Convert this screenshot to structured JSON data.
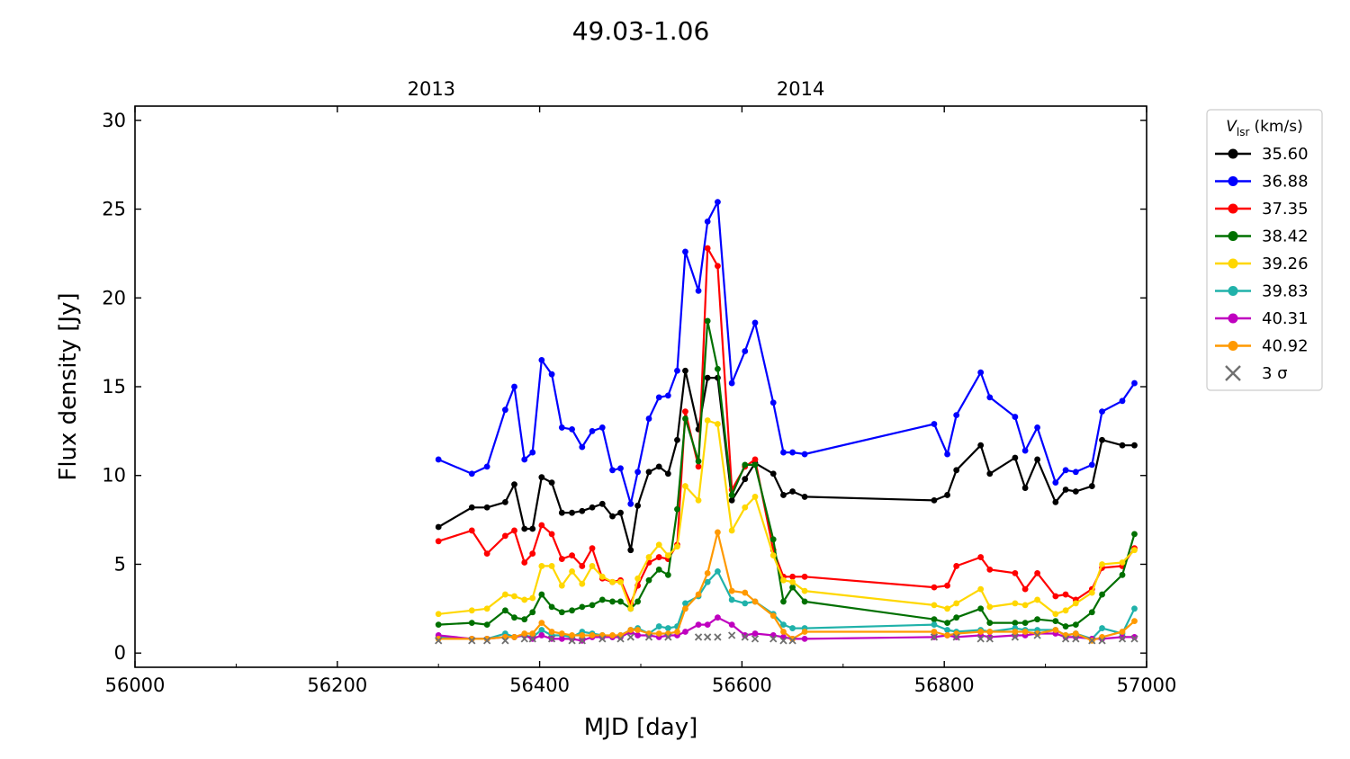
{
  "chart_data": {
    "type": "line",
    "title": "49.03-1.06",
    "xlabel": "MJD [day]",
    "ylabel": "Flux density [Jy]",
    "xlim": [
      56000,
      57000
    ],
    "ylim": [
      -0.8,
      30.8
    ],
    "x_ticks": [
      56000,
      56200,
      56400,
      56600,
      56800,
      57000
    ],
    "x_tick_labels": [
      "56000",
      "56200",
      "56400",
      "56600",
      "56800",
      "57000"
    ],
    "y_ticks": [
      0,
      5,
      10,
      15,
      20,
      25,
      30
    ],
    "y_tick_labels": [
      "0",
      "5",
      "10",
      "15",
      "20",
      "25",
      "30"
    ],
    "top_axis": {
      "ticks": [
        56293,
        56658
      ],
      "labels": [
        "2013",
        "2014"
      ]
    },
    "legend": {
      "title": "V_lsr (km/s)",
      "title_symbol": "V",
      "title_subscript": "lsr",
      "title_unit": "(km/s)",
      "placement": "outside-right-top",
      "threshold_label": "3 σ"
    },
    "series": [
      {
        "name": "35.60",
        "color": "#000000",
        "x": [
          56300,
          56333,
          56348,
          56366,
          56375,
          56385,
          56393,
          56402,
          56412,
          56422,
          56432,
          56442,
          56452,
          56462,
          56472,
          56480,
          56490,
          56497,
          56508,
          56518,
          56527,
          56536,
          56544,
          56557,
          56566,
          56576,
          56590,
          56603,
          56613,
          56631,
          56641,
          56650,
          56662,
          56790,
          56803,
          56812,
          56836,
          56845,
          56870,
          56880,
          56892,
          56910,
          56920,
          56930,
          56946,
          56956,
          56976,
          56988
        ],
        "y": [
          7.1,
          8.2,
          8.2,
          8.5,
          9.5,
          7.0,
          7.0,
          9.9,
          9.6,
          7.9,
          7.9,
          8.0,
          8.2,
          8.4,
          7.7,
          7.9,
          5.8,
          8.3,
          10.2,
          10.5,
          10.1,
          12.0,
          15.9,
          12.6,
          15.5,
          15.5,
          8.6,
          9.8,
          10.7,
          10.1,
          8.9,
          9.1,
          8.8,
          8.6,
          8.9,
          10.3,
          11.7,
          10.1,
          11.0,
          9.3,
          10.9,
          8.5,
          9.2,
          9.1,
          9.4,
          12.0,
          11.7,
          11.7
        ]
      },
      {
        "name": "36.88",
        "color": "#0000ff",
        "x": [
          56300,
          56333,
          56348,
          56366,
          56375,
          56385,
          56393,
          56402,
          56412,
          56422,
          56432,
          56442,
          56452,
          56462,
          56472,
          56480,
          56490,
          56497,
          56508,
          56518,
          56527,
          56536,
          56544,
          56557,
          56566,
          56576,
          56590,
          56603,
          56613,
          56631,
          56641,
          56650,
          56662,
          56790,
          56803,
          56812,
          56836,
          56845,
          56870,
          56880,
          56892,
          56910,
          56920,
          56930,
          56946,
          56956,
          56976,
          56988
        ],
        "y": [
          10.9,
          10.1,
          10.5,
          13.7,
          15.0,
          10.9,
          11.3,
          16.5,
          15.7,
          12.7,
          12.6,
          11.6,
          12.5,
          12.7,
          10.3,
          10.4,
          8.4,
          10.2,
          13.2,
          14.4,
          14.5,
          15.9,
          22.6,
          20.4,
          24.3,
          25.4,
          15.2,
          17.0,
          18.6,
          14.1,
          11.3,
          11.3,
          11.2,
          12.9,
          11.2,
          13.4,
          15.8,
          14.4,
          13.3,
          11.4,
          12.7,
          9.6,
          10.3,
          10.2,
          10.6,
          13.6,
          14.2,
          15.2
        ]
      },
      {
        "name": "37.35",
        "color": "#ff0000",
        "x": [
          56300,
          56333,
          56348,
          56366,
          56375,
          56385,
          56393,
          56402,
          56412,
          56422,
          56432,
          56442,
          56452,
          56462,
          56472,
          56480,
          56490,
          56497,
          56508,
          56518,
          56527,
          56536,
          56544,
          56557,
          56566,
          56576,
          56590,
          56603,
          56613,
          56631,
          56641,
          56650,
          56662,
          56790,
          56803,
          56812,
          56836,
          56845,
          56870,
          56880,
          56892,
          56910,
          56920,
          56930,
          56946,
          56956,
          56976,
          56988
        ],
        "y": [
          6.3,
          6.9,
          5.6,
          6.6,
          6.9,
          5.1,
          5.6,
          7.2,
          6.7,
          5.3,
          5.5,
          4.9,
          5.9,
          4.2,
          4.0,
          4.1,
          2.8,
          3.8,
          5.1,
          5.4,
          5.3,
          6.1,
          13.6,
          10.5,
          22.8,
          21.8,
          9.2,
          10.5,
          10.9,
          5.8,
          4.3,
          4.3,
          4.3,
          3.7,
          3.8,
          4.9,
          5.4,
          4.7,
          4.5,
          3.6,
          4.5,
          3.2,
          3.3,
          3.0,
          3.6,
          4.8,
          4.9,
          5.9
        ]
      },
      {
        "name": "38.42",
        "color": "#007000",
        "x": [
          56300,
          56333,
          56348,
          56366,
          56375,
          56385,
          56393,
          56402,
          56412,
          56422,
          56432,
          56442,
          56452,
          56462,
          56472,
          56480,
          56490,
          56497,
          56508,
          56518,
          56527,
          56536,
          56544,
          56557,
          56566,
          56576,
          56590,
          56603,
          56613,
          56631,
          56641,
          56650,
          56662,
          56790,
          56803,
          56812,
          56836,
          56845,
          56870,
          56880,
          56892,
          56910,
          56920,
          56930,
          56946,
          56956,
          56976,
          56988
        ],
        "y": [
          1.6,
          1.7,
          1.6,
          2.4,
          2.0,
          1.9,
          2.3,
          3.3,
          2.6,
          2.3,
          2.4,
          2.6,
          2.7,
          3.0,
          2.9,
          2.9,
          2.5,
          2.9,
          4.1,
          4.7,
          4.4,
          8.1,
          13.2,
          10.8,
          18.7,
          16.0,
          8.9,
          10.6,
          10.6,
          6.4,
          2.9,
          3.7,
          2.9,
          1.9,
          1.7,
          2.0,
          2.5,
          1.7,
          1.7,
          1.7,
          1.9,
          1.8,
          1.5,
          1.6,
          2.3,
          3.3,
          4.4,
          6.7
        ]
      },
      {
        "name": "39.26",
        "color": "#ffd700",
        "x": [
          56300,
          56333,
          56348,
          56366,
          56375,
          56385,
          56393,
          56402,
          56412,
          56422,
          56432,
          56442,
          56452,
          56462,
          56472,
          56480,
          56490,
          56497,
          56508,
          56518,
          56527,
          56536,
          56544,
          56557,
          56566,
          56576,
          56590,
          56603,
          56613,
          56631,
          56641,
          56650,
          56662,
          56790,
          56803,
          56812,
          56836,
          56845,
          56870,
          56880,
          56892,
          56910,
          56920,
          56930,
          56946,
          56956,
          56976,
          56988
        ],
        "y": [
          2.2,
          2.4,
          2.5,
          3.3,
          3.2,
          3.0,
          3.1,
          4.9,
          4.9,
          3.8,
          4.6,
          3.9,
          4.9,
          4.3,
          4.0,
          4.0,
          2.5,
          4.2,
          5.4,
          6.1,
          5.5,
          6.0,
          9.4,
          8.6,
          13.1,
          12.9,
          6.9,
          8.2,
          8.8,
          5.5,
          4.1,
          4.0,
          3.5,
          2.7,
          2.5,
          2.8,
          3.6,
          2.6,
          2.8,
          2.7,
          3.0,
          2.2,
          2.4,
          2.8,
          3.4,
          5.0,
          5.1,
          5.8
        ]
      },
      {
        "name": "39.83",
        "color": "#20b2aa",
        "x": [
          56300,
          56333,
          56348,
          56366,
          56375,
          56385,
          56393,
          56402,
          56412,
          56422,
          56432,
          56442,
          56452,
          56462,
          56472,
          56480,
          56490,
          56497,
          56508,
          56518,
          56527,
          56536,
          56544,
          56557,
          56566,
          56576,
          56590,
          56603,
          56613,
          56631,
          56641,
          56650,
          56662,
          56790,
          56803,
          56812,
          56836,
          56845,
          56870,
          56880,
          56892,
          56910,
          56920,
          56930,
          56946,
          56956,
          56976,
          56988
        ],
        "y": [
          0.9,
          0.8,
          0.8,
          1.1,
          0.9,
          1.0,
          0.9,
          1.3,
          1.0,
          1.0,
          0.9,
          1.2,
          1.1,
          1.0,
          0.9,
          1.0,
          1.3,
          1.4,
          1.1,
          1.5,
          1.4,
          1.5,
          2.8,
          3.2,
          4.0,
          4.6,
          3.0,
          2.8,
          2.9,
          2.2,
          1.6,
          1.4,
          1.4,
          1.6,
          1.3,
          1.2,
          1.3,
          1.2,
          1.4,
          1.3,
          1.3,
          1.3,
          1.0,
          1.1,
          0.8,
          1.4,
          1.1,
          2.5
        ]
      },
      {
        "name": "40.31",
        "color": "#bf00bf",
        "x": [
          56300,
          56333,
          56348,
          56366,
          56375,
          56385,
          56393,
          56402,
          56412,
          56422,
          56432,
          56442,
          56452,
          56462,
          56472,
          56480,
          56490,
          56497,
          56508,
          56518,
          56527,
          56536,
          56544,
          56557,
          56566,
          56576,
          56590,
          56603,
          56613,
          56631,
          56641,
          56650,
          56662,
          56790,
          56803,
          56812,
          56836,
          56845,
          56870,
          56880,
          56892,
          56910,
          56920,
          56930,
          56946,
          56956,
          56976,
          56988
        ],
        "y": [
          1.0,
          0.8,
          0.8,
          0.9,
          0.9,
          1.0,
          0.8,
          1.0,
          0.8,
          0.8,
          0.8,
          0.7,
          0.9,
          0.9,
          0.9,
          0.9,
          1.2,
          1.0,
          1.0,
          0.9,
          1.0,
          1.0,
          1.2,
          1.6,
          1.6,
          2.0,
          1.6,
          1.0,
          1.1,
          1.0,
          0.9,
          0.8,
          0.8,
          0.9,
          1.0,
          0.9,
          1.0,
          0.9,
          1.0,
          1.0,
          1.1,
          1.1,
          0.9,
          0.9,
          0.8,
          0.8,
          0.9,
          0.9
        ]
      },
      {
        "name": "40.92",
        "color": "#ff9900",
        "x": [
          56300,
          56333,
          56348,
          56366,
          56375,
          56385,
          56393,
          56402,
          56412,
          56422,
          56432,
          56442,
          56452,
          56462,
          56472,
          56480,
          56490,
          56497,
          56508,
          56518,
          56527,
          56536,
          56544,
          56557,
          56566,
          56576,
          56590,
          56603,
          56613,
          56631,
          56641,
          56650,
          56662,
          56790,
          56803,
          56812,
          56836,
          56845,
          56870,
          56880,
          56892,
          56910,
          56920,
          56930,
          56946,
          56956,
          56976,
          56988
        ],
        "y": [
          0.8,
          0.8,
          0.8,
          0.9,
          0.9,
          1.1,
          1.1,
          1.7,
          1.2,
          1.1,
          1.0,
          1.0,
          1.0,
          1.0,
          1.0,
          1.0,
          1.3,
          1.3,
          1.1,
          1.1,
          1.1,
          1.2,
          2.5,
          3.3,
          4.5,
          6.8,
          3.5,
          3.4,
          2.9,
          2.1,
          1.2,
          0.8,
          1.2,
          1.2,
          1.0,
          1.1,
          1.2,
          1.2,
          1.2,
          1.2,
          1.1,
          1.3,
          1.0,
          1.1,
          0.7,
          0.9,
          1.2,
          1.8
        ]
      },
      {
        "name": "3 σ",
        "color": "#707070",
        "marker": "x",
        "x": [
          56300,
          56333,
          56348,
          56366,
          56385,
          56393,
          56412,
          56432,
          56442,
          56462,
          56480,
          56490,
          56508,
          56527,
          56557,
          56566,
          56576,
          56590,
          56603,
          56613,
          56631,
          56641,
          56650,
          56790,
          56812,
          56836,
          56845,
          56870,
          56892,
          56920,
          56930,
          56946,
          56956,
          56976,
          56988
        ],
        "y": [
          0.7,
          0.7,
          0.7,
          0.7,
          0.8,
          0.8,
          0.8,
          0.7,
          0.7,
          0.8,
          0.8,
          0.9,
          0.9,
          0.9,
          0.9,
          0.9,
          0.9,
          1.0,
          0.9,
          0.8,
          0.8,
          0.7,
          0.7,
          0.9,
          0.9,
          0.8,
          0.8,
          0.9,
          1.0,
          0.8,
          0.8,
          0.7,
          0.7,
          0.8,
          0.8
        ]
      }
    ]
  }
}
